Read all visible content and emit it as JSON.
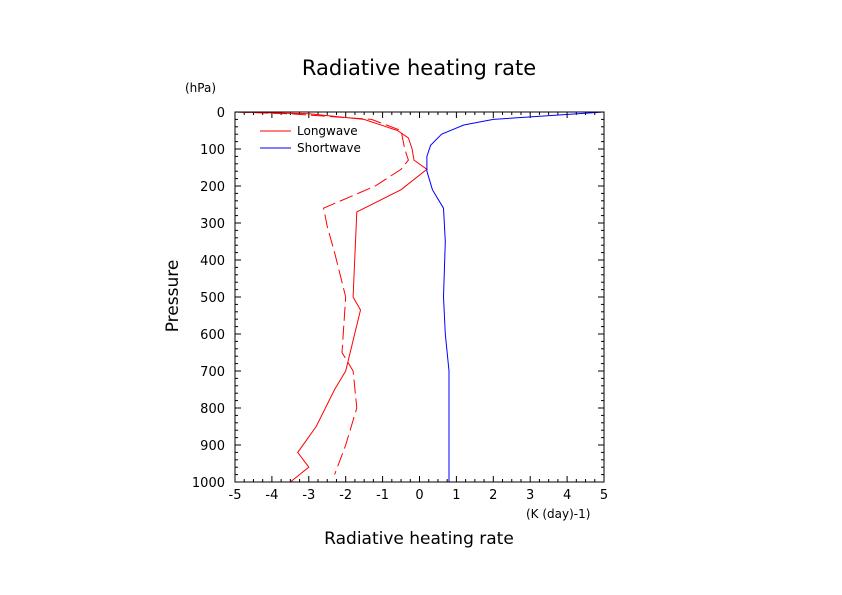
{
  "chart_data": {
    "type": "line",
    "title": "Radiative heating rate",
    "xlabel": "Radiative heating rate",
    "x_unit": "(K (day)-1)",
    "ylabel": "Pressure",
    "y_unit": "(hPa)",
    "xlim": [
      -5,
      5
    ],
    "ylim": [
      1000,
      0
    ],
    "y_inverted": true,
    "x_ticks": [
      -5,
      -4,
      -3,
      -2,
      -1,
      0,
      1,
      2,
      3,
      4,
      5
    ],
    "y_ticks": [
      0,
      100,
      200,
      300,
      400,
      500,
      600,
      700,
      800,
      900,
      1000
    ],
    "grid": false,
    "legend_position": "top-left",
    "legend": [
      "Longwave",
      "Shortwave"
    ],
    "series": [
      {
        "name": "Longwave",
        "color": "#ff0000",
        "dash": "solid",
        "points": [
          {
            "x": -5.0,
            "p": 0
          },
          {
            "x": -3.0,
            "p": 5
          },
          {
            "x": -1.5,
            "p": 20
          },
          {
            "x": -0.6,
            "p": 50
          },
          {
            "x": -0.3,
            "p": 70
          },
          {
            "x": -0.2,
            "p": 100
          },
          {
            "x": -0.15,
            "p": 130
          },
          {
            "x": 0.2,
            "p": 155
          },
          {
            "x": -0.5,
            "p": 210
          },
          {
            "x": -1.7,
            "p": 270
          },
          {
            "x": -1.8,
            "p": 500
          },
          {
            "x": -1.6,
            "p": 535
          },
          {
            "x": -2.0,
            "p": 700
          },
          {
            "x": -2.3,
            "p": 750
          },
          {
            "x": -2.8,
            "p": 850
          },
          {
            "x": -3.3,
            "p": 920
          },
          {
            "x": -3.0,
            "p": 960
          },
          {
            "x": -3.5,
            "p": 1000
          }
        ]
      },
      {
        "name": "Longwave (dashed)",
        "color": "#ff0000",
        "dash": "dashed",
        "points": [
          {
            "x": -5.0,
            "p": 0
          },
          {
            "x": -3.5,
            "p": 5
          },
          {
            "x": -1.3,
            "p": 20
          },
          {
            "x": -0.5,
            "p": 50
          },
          {
            "x": -0.4,
            "p": 100
          },
          {
            "x": -0.3,
            "p": 130
          },
          {
            "x": -0.5,
            "p": 155
          },
          {
            "x": -1.2,
            "p": 200
          },
          {
            "x": -2.6,
            "p": 260
          },
          {
            "x": -2.5,
            "p": 310
          },
          {
            "x": -2.3,
            "p": 380
          },
          {
            "x": -2.0,
            "p": 500
          },
          {
            "x": -2.1,
            "p": 650
          },
          {
            "x": -1.8,
            "p": 700
          },
          {
            "x": -1.7,
            "p": 800
          },
          {
            "x": -2.0,
            "p": 900
          },
          {
            "x": -2.3,
            "p": 980
          }
        ]
      },
      {
        "name": "Shortwave",
        "color": "#0000ff",
        "dash": "solid",
        "points": [
          {
            "x": 5.0,
            "p": 0
          },
          {
            "x": 2.0,
            "p": 20
          },
          {
            "x": 1.2,
            "p": 35
          },
          {
            "x": 0.6,
            "p": 60
          },
          {
            "x": 0.3,
            "p": 90
          },
          {
            "x": 0.2,
            "p": 120
          },
          {
            "x": 0.2,
            "p": 160
          },
          {
            "x": 0.35,
            "p": 210
          },
          {
            "x": 0.65,
            "p": 260
          },
          {
            "x": 0.7,
            "p": 350
          },
          {
            "x": 0.65,
            "p": 500
          },
          {
            "x": 0.7,
            "p": 600
          },
          {
            "x": 0.8,
            "p": 700
          },
          {
            "x": 0.8,
            "p": 1000
          }
        ]
      }
    ]
  }
}
